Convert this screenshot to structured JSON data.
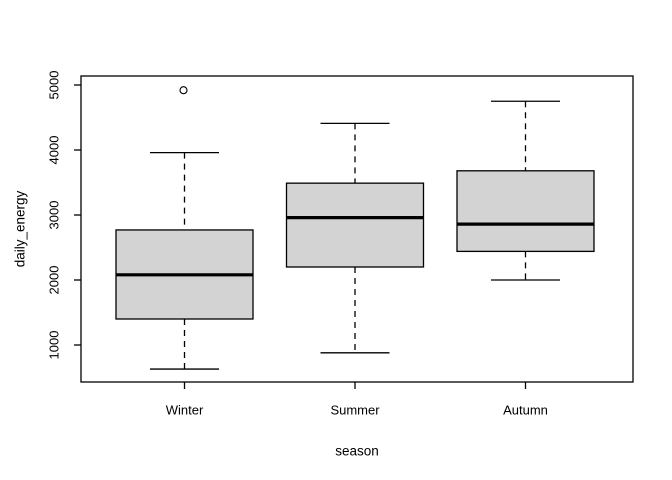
{
  "chart_data": {
    "type": "boxplot",
    "title": "",
    "xlabel": "season",
    "ylabel": "daily_energy",
    "categories": [
      "Winter",
      "Summer",
      "Autumn"
    ],
    "y_ticks": [
      1000,
      2000,
      3000,
      4000,
      5000
    ],
    "ylim": [
      430,
      5140
    ],
    "grid": false,
    "legend": "none",
    "box_fill_color": "#d3d3d3",
    "line_color": "#000000",
    "background_color": "#ffffff",
    "series": [
      {
        "name": "Winter",
        "whisker_low": 630,
        "q1": 1400,
        "median": 2080,
        "q3": 2770,
        "whisker_high": 3960,
        "outliers": [
          4920
        ]
      },
      {
        "name": "Summer",
        "whisker_low": 880,
        "q1": 2200,
        "median": 2960,
        "q3": 3490,
        "whisker_high": 4410,
        "outliers": []
      },
      {
        "name": "Autumn",
        "whisker_low": 2000,
        "q1": 2440,
        "median": 2860,
        "q3": 3680,
        "whisker_high": 4750,
        "outliers": []
      }
    ]
  }
}
